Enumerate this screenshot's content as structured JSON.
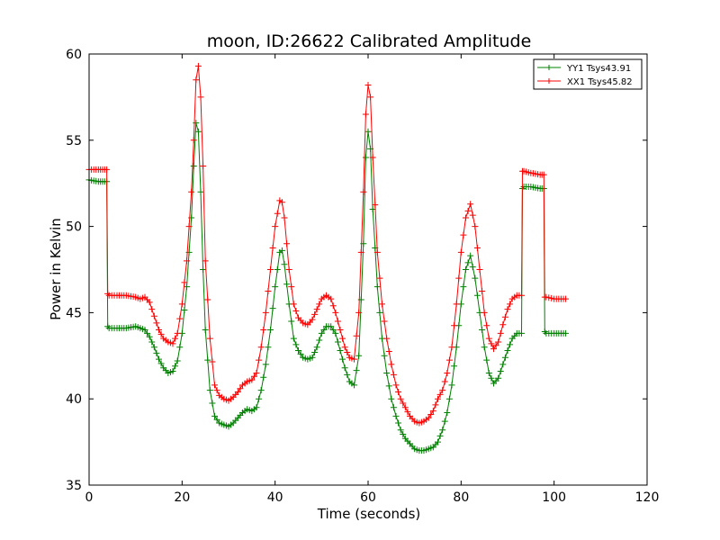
{
  "chart_data": {
    "type": "line",
    "title": "moon, ID:26622 Calibrated Amplitude",
    "xlabel": "Time (seconds)",
    "ylabel": "Power in Kelvin",
    "xlim": [
      0,
      120
    ],
    "ylim": [
      35,
      60
    ],
    "x_ticks": [
      "0",
      "20",
      "40",
      "60",
      "80",
      "100",
      "120"
    ],
    "y_ticks": [
      "35",
      "40",
      "45",
      "50",
      "55",
      "60"
    ],
    "grid": false,
    "legend_position": "upper right",
    "marker": "+",
    "series": [
      {
        "name": "YY1 Tsys43.91",
        "color": "#008000",
        "x": [
          0,
          2,
          3.8,
          4,
          4.3,
          6,
          8,
          10,
          12,
          13,
          14,
          15,
          16,
          17,
          18,
          19,
          20,
          21,
          22,
          22.5,
          23,
          23.5,
          24,
          24.5,
          25,
          26,
          27,
          28,
          29,
          30,
          31,
          32,
          33,
          34,
          35,
          36,
          37,
          38,
          39,
          40,
          41,
          41.5,
          42,
          43,
          44,
          45,
          46,
          47,
          48,
          49,
          50,
          51,
          52,
          53,
          54,
          55,
          56,
          57,
          58,
          59,
          59.5,
          60,
          60.5,
          61,
          62,
          63,
          64,
          65,
          66,
          67,
          68,
          69,
          70,
          71,
          72,
          73,
          74,
          75,
          76,
          77,
          78,
          79,
          80,
          81,
          82,
          83,
          84,
          85,
          86,
          87,
          88,
          89,
          90,
          91,
          92,
          93,
          93.2,
          93.5,
          95,
          97,
          97.8,
          98,
          98.3,
          100,
          102.5
        ],
        "values": [
          52.7,
          52.6,
          52.6,
          44.2,
          44.1,
          44.1,
          44.1,
          44.2,
          44.0,
          43.6,
          43.0,
          42.3,
          41.8,
          41.5,
          41.6,
          42.2,
          43.8,
          46.5,
          50.5,
          53.5,
          56.0,
          55.5,
          52.0,
          47.5,
          44.0,
          40.5,
          39.0,
          38.6,
          38.5,
          38.4,
          38.6,
          38.9,
          39.2,
          39.4,
          39.3,
          39.5,
          40.5,
          42.0,
          44.0,
          46.5,
          48.5,
          48.6,
          47.8,
          45.5,
          43.5,
          42.8,
          42.4,
          42.3,
          42.4,
          43.0,
          43.8,
          44.2,
          44.2,
          43.8,
          42.8,
          41.8,
          41.0,
          40.8,
          42.5,
          49.0,
          54.0,
          55.5,
          54.5,
          51.0,
          46.5,
          43.5,
          41.5,
          40.0,
          39.0,
          38.2,
          37.7,
          37.4,
          37.1,
          37.0,
          37.0,
          37.1,
          37.2,
          37.5,
          38.2,
          39.2,
          40.8,
          43.0,
          45.5,
          47.5,
          48.3,
          47.0,
          45.0,
          43.0,
          41.5,
          40.9,
          41.2,
          42.0,
          42.8,
          43.5,
          43.8,
          43.8,
          52.2,
          52.3,
          52.3,
          52.2,
          52.2,
          43.9,
          43.8,
          43.8,
          43.8
        ]
      },
      {
        "name": "XX1 Tsys45.82",
        "color": "#ff0000",
        "x": [
          0,
          2,
          3.8,
          4,
          4.3,
          6,
          8,
          10,
          11,
          12,
          13,
          14,
          15,
          16,
          17,
          18,
          19,
          20,
          21,
          22,
          22.5,
          23,
          23.5,
          24,
          24.5,
          25,
          26,
          27,
          28,
          29,
          30,
          31,
          32,
          33,
          34,
          35,
          36,
          37,
          38,
          39,
          40,
          41,
          41.5,
          42,
          43,
          44,
          45,
          46,
          47,
          48,
          49,
          50,
          51,
          52,
          53,
          54,
          55,
          56,
          57,
          58,
          59,
          59.5,
          60,
          60.5,
          61,
          62,
          63,
          64,
          65,
          66,
          67,
          68,
          69,
          70,
          71,
          72,
          73,
          74,
          75,
          76,
          77,
          78,
          79,
          80,
          81,
          82,
          83,
          84,
          85,
          86,
          87,
          88,
          89,
          90,
          91,
          92,
          93,
          93.2,
          93.5,
          95,
          97,
          97.8,
          98,
          98.3,
          100,
          102.5
        ],
        "values": [
          53.3,
          53.3,
          53.3,
          46.1,
          46.0,
          46.0,
          46.0,
          45.9,
          45.8,
          45.9,
          45.6,
          44.8,
          44.0,
          43.5,
          43.3,
          43.2,
          43.8,
          45.5,
          48.0,
          52.0,
          55.0,
          58.5,
          59.3,
          57.5,
          53.5,
          48.0,
          43.5,
          40.8,
          40.2,
          40.0,
          39.9,
          40.1,
          40.4,
          40.8,
          41.0,
          41.1,
          41.5,
          43.0,
          45.0,
          47.5,
          50.0,
          51.5,
          51.4,
          50.5,
          47.5,
          45.5,
          44.7,
          44.4,
          44.3,
          44.6,
          45.2,
          45.8,
          46.0,
          45.8,
          45.0,
          44.0,
          43.0,
          42.4,
          42.3,
          45.0,
          52.0,
          56.5,
          58.2,
          57.5,
          54.0,
          48.5,
          45.5,
          43.5,
          42.0,
          40.8,
          40.0,
          39.5,
          39.0,
          38.7,
          38.6,
          38.7,
          38.9,
          39.3,
          40.0,
          40.5,
          41.5,
          43.0,
          45.5,
          48.5,
          50.5,
          51.3,
          50.0,
          47.5,
          45.0,
          43.5,
          42.9,
          43.3,
          44.3,
          45.2,
          45.8,
          46.0,
          46.0,
          53.2,
          53.2,
          53.1,
          53.0,
          53.0,
          45.9,
          45.9,
          45.8,
          45.8
        ]
      }
    ]
  }
}
